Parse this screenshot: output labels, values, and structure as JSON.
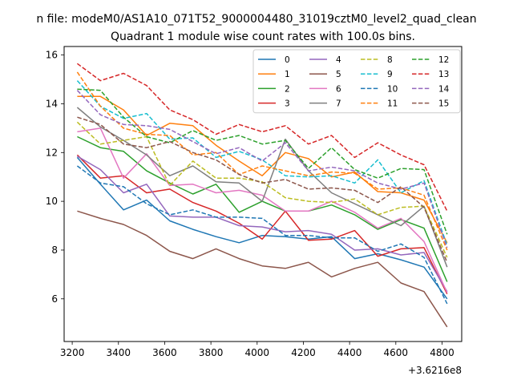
{
  "chart_data": {
    "type": "line",
    "suptitle": "n file: modeM0/AS1A10_071T52_9000004480_31019cztM0_level2_quad_clean",
    "title": "Quadrant 1 module wise count rates with 100.0s bins.",
    "xlabel": "",
    "ylabel": "",
    "x_offset_label": "+3.6216e8",
    "xlim": [
      3165,
      4885
    ],
    "ylim": [
      4.25,
      16.35
    ],
    "x_ticks": [
      3200,
      3400,
      3600,
      3800,
      4000,
      4200,
      4400,
      4600,
      4800
    ],
    "y_ticks": [
      6,
      8,
      10,
      12,
      14,
      16
    ],
    "grid": false,
    "legend_position": "upper-right",
    "legend_columns": 4,
    "x": [
      3222,
      3322,
      3422,
      3522,
      3622,
      3722,
      3822,
      3922,
      4022,
      4122,
      4222,
      4322,
      4422,
      4522,
      4622,
      4722,
      4822
    ],
    "series": [
      {
        "name": "0",
        "color": "#1f77b4",
        "dash": "solid",
        "values": [
          11.8,
          10.7,
          9.65,
          10.05,
          9.2,
          8.85,
          8.55,
          8.3,
          8.6,
          8.55,
          8.45,
          8.55,
          7.65,
          7.85,
          7.6,
          7.3,
          6.0
        ]
      },
      {
        "name": "1",
        "color": "#ff7f0e",
        "dash": "solid",
        "values": [
          14.3,
          14.3,
          13.75,
          12.7,
          13.2,
          13.1,
          12.3,
          11.65,
          11.05,
          12.0,
          11.75,
          11.0,
          11.2,
          10.4,
          10.35,
          10.05,
          8.3
        ]
      },
      {
        "name": "2",
        "color": "#2ca02c",
        "dash": "solid",
        "values": [
          12.65,
          12.2,
          12.05,
          11.25,
          10.75,
          10.3,
          10.7,
          9.55,
          10.0,
          9.6,
          9.6,
          9.85,
          9.45,
          8.85,
          9.25,
          8.9,
          6.7
        ]
      },
      {
        "name": "3",
        "color": "#d62728",
        "dash": "solid",
        "values": [
          11.9,
          10.95,
          11.05,
          10.35,
          10.5,
          9.95,
          9.6,
          9.1,
          8.45,
          9.6,
          8.4,
          8.45,
          8.8,
          7.75,
          8.05,
          8.1,
          6.2
        ]
      },
      {
        "name": "4",
        "color": "#9467bd",
        "dash": "solid",
        "values": [
          11.85,
          11.3,
          10.35,
          10.7,
          9.4,
          9.35,
          9.35,
          9.0,
          8.95,
          8.75,
          8.8,
          8.65,
          8.0,
          8.05,
          7.8,
          7.9,
          6.3
        ]
      },
      {
        "name": "5",
        "color": "#8c564b",
        "dash": "solid",
        "values": [
          9.6,
          9.3,
          9.05,
          8.6,
          7.95,
          7.65,
          8.05,
          7.65,
          7.35,
          7.25,
          7.5,
          6.9,
          7.25,
          7.5,
          6.65,
          6.3,
          4.85
        ]
      },
      {
        "name": "6",
        "color": "#e377c2",
        "dash": "solid",
        "values": [
          12.85,
          13.0,
          10.95,
          11.95,
          10.65,
          10.7,
          10.35,
          10.45,
          10.25,
          9.6,
          9.6,
          10.0,
          9.55,
          8.9,
          9.3,
          8.35,
          6.25
        ]
      },
      {
        "name": "7",
        "color": "#7f7f7f",
        "dash": "solid",
        "values": [
          13.85,
          13.05,
          12.5,
          11.9,
          11.05,
          11.45,
          10.8,
          10.75,
          10.0,
          12.55,
          11.25,
          10.35,
          9.9,
          9.45,
          9.0,
          9.8,
          7.3
        ]
      },
      {
        "name": "8",
        "color": "#bcbd22",
        "dash": "dashed",
        "values": [
          13.25,
          12.35,
          12.5,
          12.65,
          10.65,
          11.65,
          10.95,
          10.95,
          10.8,
          10.15,
          10.0,
          9.95,
          10.1,
          9.45,
          9.75,
          9.8,
          7.7
        ]
      },
      {
        "name": "9",
        "color": "#17becf",
        "dash": "dashed",
        "values": [
          14.95,
          13.9,
          13.4,
          13.6,
          12.55,
          12.6,
          11.8,
          12.05,
          11.7,
          11.05,
          11.0,
          11.05,
          10.75,
          11.7,
          10.35,
          10.85,
          8.2
        ]
      },
      {
        "name": "10",
        "color": "#1f77b4",
        "dash": "dashed",
        "values": [
          11.45,
          10.75,
          10.6,
          9.9,
          9.45,
          9.65,
          9.35,
          9.35,
          9.3,
          8.6,
          8.6,
          8.5,
          8.5,
          7.95,
          8.25,
          7.7,
          5.8
        ]
      },
      {
        "name": "11",
        "color": "#ff7f0e",
        "dash": "dashed",
        "values": [
          15.3,
          13.9,
          13.0,
          12.75,
          12.7,
          11.9,
          12.0,
          11.1,
          11.45,
          11.25,
          11.05,
          11.2,
          11.15,
          10.5,
          10.55,
          10.25,
          8.0
        ]
      },
      {
        "name": "12",
        "color": "#2ca02c",
        "dash": "dashed",
        "values": [
          14.6,
          14.55,
          13.45,
          12.65,
          12.4,
          12.9,
          12.5,
          12.7,
          12.35,
          12.5,
          11.35,
          12.2,
          11.3,
          10.95,
          11.35,
          11.3,
          8.65
        ]
      },
      {
        "name": "13",
        "color": "#d62728",
        "dash": "dashed",
        "values": [
          15.65,
          14.95,
          15.25,
          14.75,
          13.75,
          13.35,
          12.75,
          13.15,
          12.85,
          13.1,
          12.35,
          12.7,
          11.8,
          12.4,
          11.9,
          11.5,
          9.6
        ]
      },
      {
        "name": "14",
        "color": "#9467bd",
        "dash": "dashed",
        "values": [
          14.55,
          13.55,
          13.15,
          13.1,
          12.95,
          12.45,
          11.95,
          12.2,
          11.65,
          12.4,
          11.25,
          11.4,
          11.25,
          10.75,
          10.5,
          10.75,
          8.1
        ]
      },
      {
        "name": "15",
        "color": "#8c564b",
        "dash": "dashed",
        "values": [
          13.45,
          13.15,
          12.35,
          12.2,
          12.45,
          12.0,
          11.7,
          11.1,
          10.75,
          10.9,
          10.5,
          10.55,
          10.45,
          9.95,
          10.6,
          9.75,
          7.5
        ]
      }
    ]
  }
}
